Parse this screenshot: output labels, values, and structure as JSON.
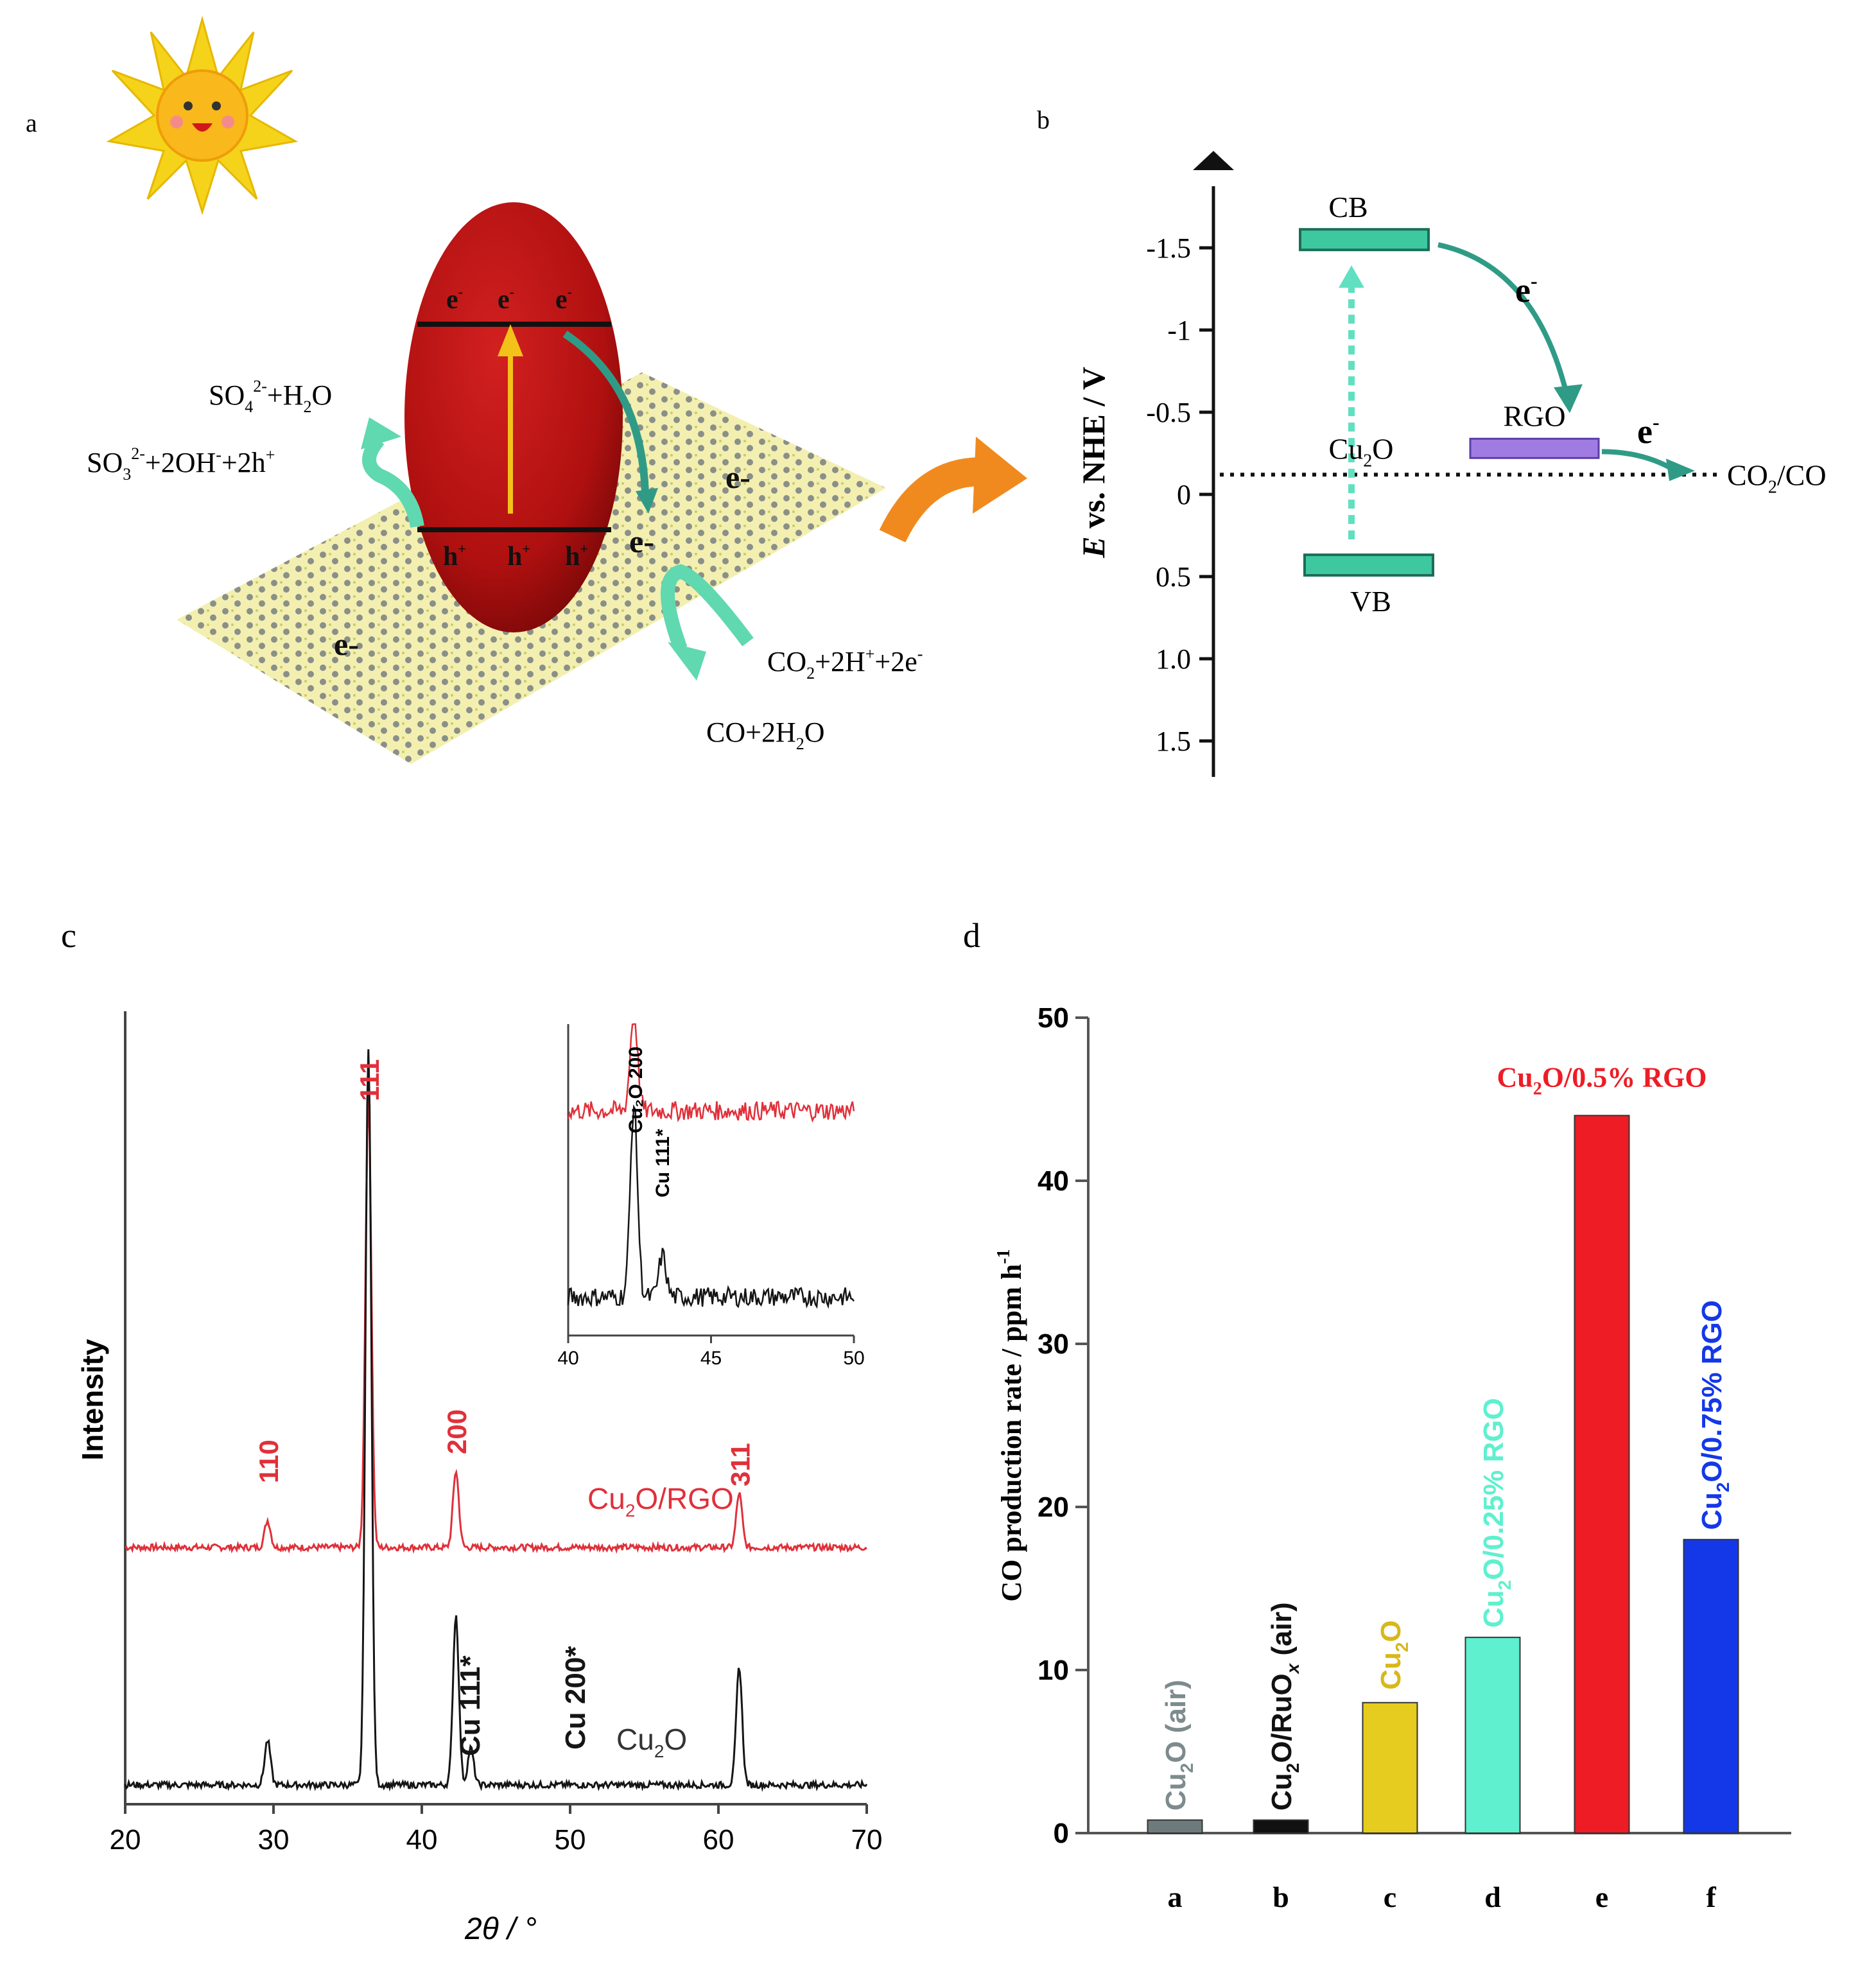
{
  "panels": {
    "a": {
      "letter": "a",
      "top_reaction": {
        "main1": "SO",
        "sub1": "4",
        "sup1": "2-",
        "main2": "+H",
        "sub2": "2",
        "main3": "O"
      },
      "left_reaction": {
        "main1": "SO",
        "sub1": "3",
        "sup1": "2-",
        "main2": "+2OH",
        "sup2": "-",
        "main3": "+2h",
        "sup3": "+"
      },
      "right_reaction": {
        "main1": "CO",
        "sub1": "2",
        "main2": "+2H",
        "sup2": "+",
        "main3": "+2e",
        "sup3": "-"
      },
      "product": {
        "main1": "CO+2H",
        "sub1": "2",
        "main2": "O"
      },
      "electron_symbol": "e",
      "electron_sup": "-",
      "hole_symbol": "h",
      "hole_sup": "+",
      "sheet_electron_label": "e-",
      "colors": {
        "particle": "#b01010",
        "sheet": "#f3efb0",
        "arrow": "#60d8b0",
        "pointer": "#f08a1e"
      }
    },
    "b": {
      "letter": "b",
      "y_axis_label_italic": "E",
      "y_axis_label_rest": " vs. NHE / V",
      "y_ticks": [
        {
          "value": -1.5,
          "label": "-1.5"
        },
        {
          "value": -1.0,
          "label": "-1"
        },
        {
          "value": -0.5,
          "label": "-0.5"
        },
        {
          "value": 0.0,
          "label": "0"
        },
        {
          "value": 0.5,
          "label": "0.5"
        },
        {
          "value": 1.0,
          "label": "1.0"
        },
        {
          "value": 1.5,
          "label": "1.5"
        }
      ],
      "cb_label": "CB",
      "vb_label": "VB",
      "cb_value": -1.55,
      "vb_value": 0.43,
      "rgo_label": "RGO",
      "rgo_value": -0.28,
      "redox_value": -0.12,
      "cu2o_label": {
        "main1": "Cu",
        "sub1": "2",
        "main2": "O"
      },
      "redox_label": {
        "main1": "CO",
        "sub1": "2",
        "main2": "/CO"
      },
      "electron_label": {
        "main": "e",
        "sup": "-"
      }
    },
    "c": {
      "letter": "c",
      "xlabel": "2θ / °",
      "ylabel": "Intensity",
      "x_ticks": [
        "20",
        "30",
        "40",
        "50",
        "60",
        "70"
      ],
      "red_series_label": {
        "main1": "Cu",
        "sub1": "2",
        "main2": "O/RGO"
      },
      "black_series_label": {
        "main1": "Cu",
        "sub1": "2",
        "main2": "O"
      },
      "peak_labels_red": [
        {
          "text": "110",
          "x": 29.6
        },
        {
          "text": "111",
          "x": 36.4
        },
        {
          "text": "200",
          "x": 42.3
        },
        {
          "text": "311",
          "x": 61.4
        }
      ],
      "peak_labels_black": [
        {
          "text": "Cu 111*",
          "x": 43.3
        },
        {
          "text": "Cu 200*",
          "x": 50.4
        }
      ],
      "inset_label_red": "Cu₂O 200",
      "inset_label_black": "Cu 111*",
      "inset_x_ticks": [
        "40",
        "45",
        "50"
      ]
    },
    "d": {
      "letter": "d"
    }
  },
  "chart_data": [
    {
      "type": "line",
      "panel": "c",
      "xlabel": "2θ / °",
      "ylabel": "Intensity",
      "xlim": [
        20,
        70
      ],
      "series": [
        {
          "name": "Cu₂O/RGO",
          "color": "#e0303a",
          "peaks": [
            {
              "x": 29.6,
              "h": 0.06
            },
            {
              "x": 36.4,
              "h": 1.0
            },
            {
              "x": 42.3,
              "h": 0.17
            },
            {
              "x": 61.4,
              "h": 0.12
            }
          ]
        },
        {
          "name": "Cu₂O",
          "color": "#151515",
          "peaks": [
            {
              "x": 29.6,
              "h": 0.06
            },
            {
              "x": 36.4,
              "h": 1.0
            },
            {
              "x": 42.3,
              "h": 0.23
            },
            {
              "x": 43.3,
              "h": 0.05
            },
            {
              "x": 61.4,
              "h": 0.16
            }
          ]
        }
      ],
      "inset": {
        "xlim": [
          40,
          50
        ]
      }
    },
    {
      "type": "bar",
      "panel": "d",
      "ylabel": "CO production rate / ppm h⁻¹",
      "ylim": [
        0,
        50
      ],
      "y_ticks": [
        0,
        10,
        20,
        30,
        40,
        50
      ],
      "categories": [
        "a",
        "b",
        "c",
        "d",
        "e",
        "f"
      ],
      "values": [
        0.8,
        0.8,
        8,
        12,
        44,
        18
      ],
      "bar_colors": [
        "#6e7b7c",
        "#111111",
        "#e6cc1e",
        "#5ef0cf",
        "#ee1c25",
        "#1438e8"
      ],
      "bar_labels": [
        {
          "main1": "Cu",
          "sub1": "2",
          "main2": "O (air)",
          "color": "#7d8b8c"
        },
        {
          "main1": "Cu",
          "sub1": "2",
          "main2": "O/RuO",
          "sub2": "x",
          "main3": " (air)",
          "color": "#111111"
        },
        {
          "main1": "Cu",
          "sub1": "2",
          "main2": "O",
          "color": "#d8b81a"
        },
        {
          "main1": "Cu",
          "sub1": "2",
          "main2": "O/0.25% RGO",
          "color": "#5ef0cf"
        },
        {
          "main1": "Cu",
          "sub1": "2",
          "main2": "O/0.5% RGO",
          "color": "#ee1c25"
        },
        {
          "main1": "Cu",
          "sub1": "2",
          "main2": "O/0.75% RGO",
          "color": "#1438e8"
        }
      ]
    }
  ]
}
